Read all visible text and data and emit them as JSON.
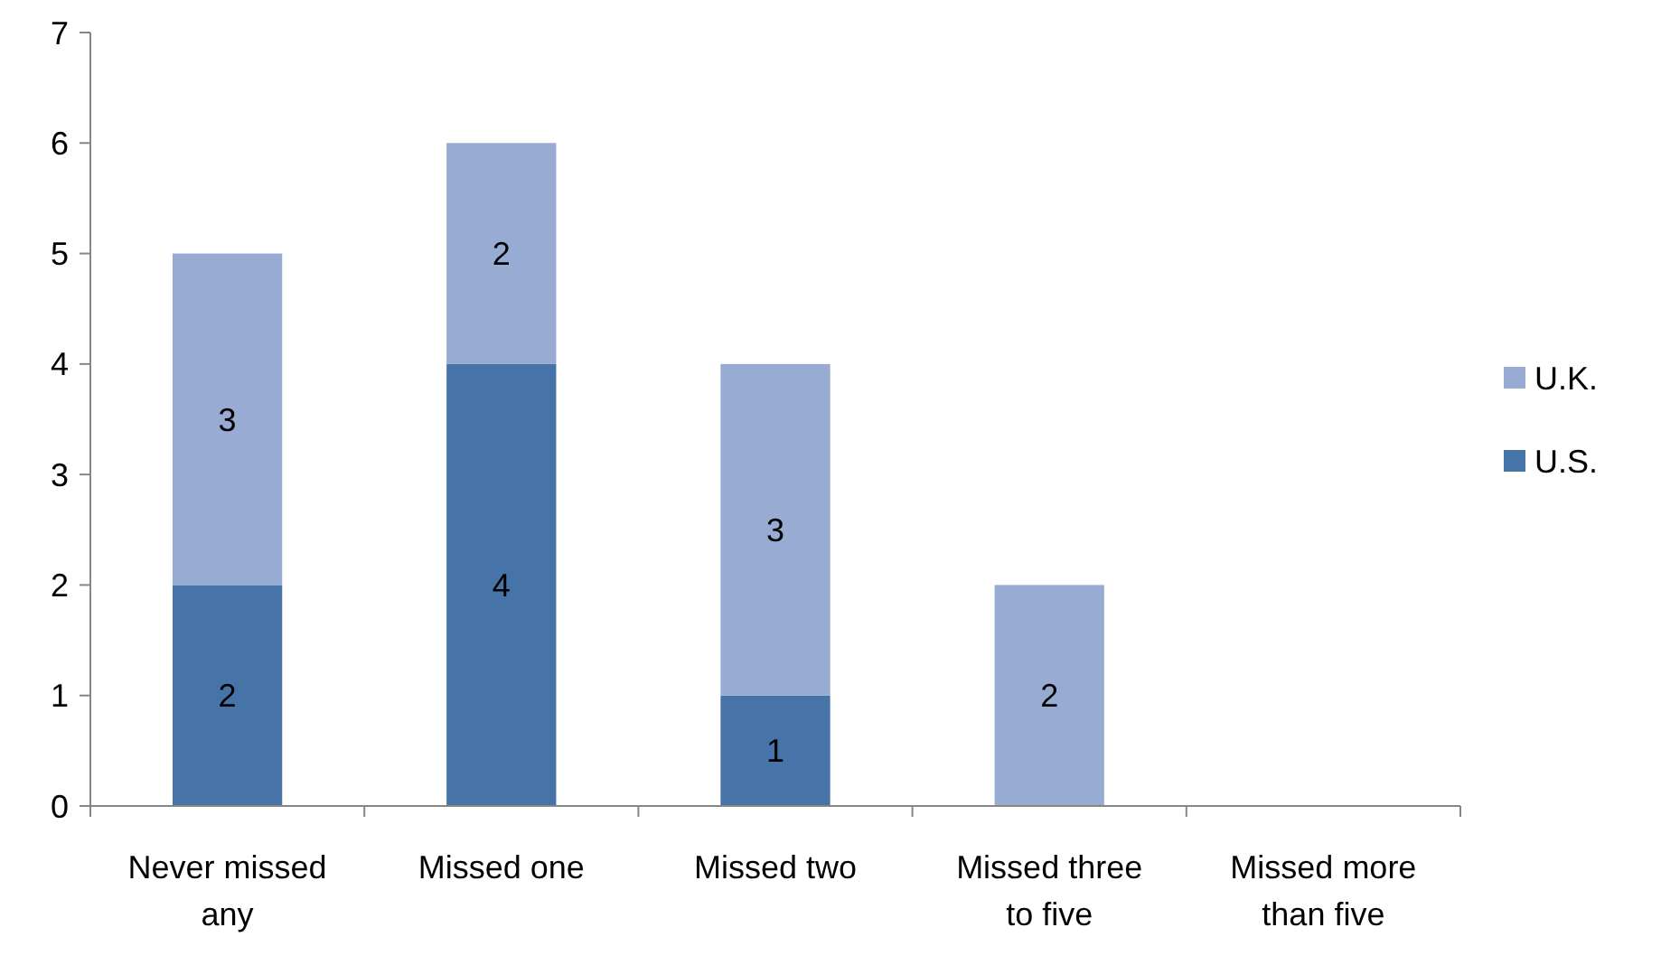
{
  "chart_data": {
    "type": "bar",
    "stacked": true,
    "categories": [
      "Never missed any",
      "Missed one",
      "Missed two",
      "Missed three to five",
      "Missed more than five"
    ],
    "series": [
      {
        "name": "U.S.",
        "color": "#4673a8",
        "values": [
          2,
          4,
          1,
          0,
          0
        ],
        "value_labels": [
          "2",
          "4",
          "1",
          null,
          null
        ]
      },
      {
        "name": "U.K.",
        "color": "#98abd3",
        "values": [
          3,
          2,
          3,
          2,
          0
        ],
        "value_labels": [
          "3",
          "2",
          "3",
          "2",
          null
        ]
      }
    ],
    "ylim": [
      0,
      7
    ],
    "yticks": [
      0,
      1,
      2,
      3,
      4,
      5,
      6,
      7
    ],
    "grid": false,
    "legend": "right"
  }
}
